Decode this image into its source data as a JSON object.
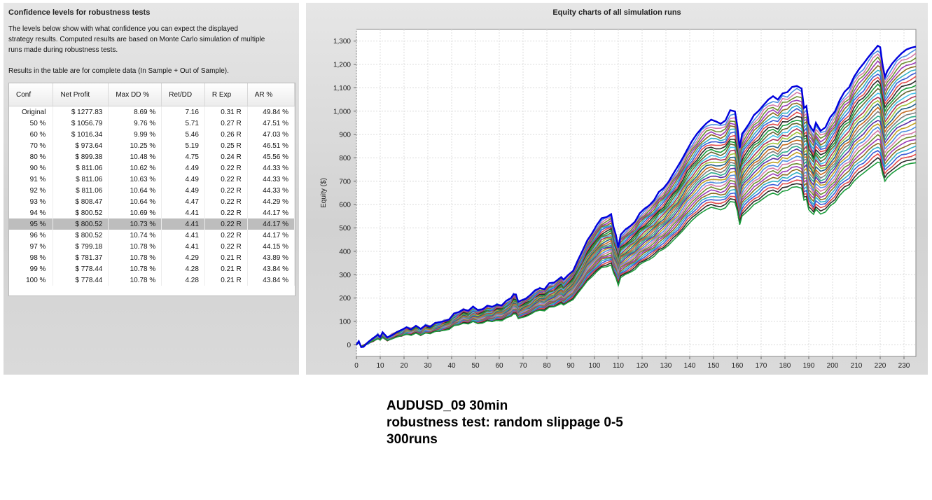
{
  "left_panel": {
    "title": "Confidence levels for robustness tests",
    "description_lines": [
      "The levels below show with what confidence you can expect the displayed",
      "strategy results. Computed results are based on Monte Carlo simulation of multiple",
      "runs made during robustness tests."
    ],
    "note": "Results in the table are for complete data (In Sample + Out of Sample).",
    "table": {
      "columns": [
        "Conf",
        "Net Profit",
        "Max DD %",
        "Ret/DD",
        "R Exp",
        "AR %"
      ],
      "selected_row": 10,
      "rows": [
        [
          "Original",
          "$ 1277.83",
          "8.69 %",
          "7.16",
          "0.31 R",
          "49.84 %"
        ],
        [
          "50 %",
          "$ 1056.79",
          "9.76 %",
          "5.71",
          "0.27 R",
          "47.51 %"
        ],
        [
          "60 %",
          "$ 1016.34",
          "9.99 %",
          "5.46",
          "0.26 R",
          "47.03 %"
        ],
        [
          "70 %",
          "$ 973.64",
          "10.25 %",
          "5.19",
          "0.25 R",
          "46.51 %"
        ],
        [
          "80 %",
          "$ 899.38",
          "10.48 %",
          "4.75",
          "0.24 R",
          "45.56 %"
        ],
        [
          "90 %",
          "$ 811.06",
          "10.62 %",
          "4.49",
          "0.22 R",
          "44.33 %"
        ],
        [
          "91 %",
          "$ 811.06",
          "10.63 %",
          "4.49",
          "0.22 R",
          "44.33 %"
        ],
        [
          "92 %",
          "$ 811.06",
          "10.64 %",
          "4.49",
          "0.22 R",
          "44.33 %"
        ],
        [
          "93 %",
          "$ 808.47",
          "10.64 %",
          "4.47",
          "0.22 R",
          "44.29 %"
        ],
        [
          "94 %",
          "$ 800.52",
          "10.69 %",
          "4.41",
          "0.22 R",
          "44.17 %"
        ],
        [
          "95 %",
          "$ 800.52",
          "10.73 %",
          "4.41",
          "0.22 R",
          "44.17 %"
        ],
        [
          "96 %",
          "$ 800.52",
          "10.74 %",
          "4.41",
          "0.22 R",
          "44.17 %"
        ],
        [
          "97 %",
          "$ 799.18",
          "10.78 %",
          "4.41",
          "0.22 R",
          "44.15 %"
        ],
        [
          "98 %",
          "$ 781.37",
          "10.78 %",
          "4.29",
          "0.21 R",
          "43.89 %"
        ],
        [
          "99 %",
          "$ 778.44",
          "10.78 %",
          "4.28",
          "0.21 R",
          "43.84 %"
        ],
        [
          "100 %",
          "$ 778.44",
          "10.78 %",
          "4.28",
          "0.21 R",
          "43.84 %"
        ]
      ]
    }
  },
  "right_panel": {
    "chart_data": {
      "type": "line",
      "title": "Equity charts of all simulation runs",
      "xlabel": "",
      "ylabel": "Equity ($)",
      "xlim": [
        0,
        235
      ],
      "ylim": [
        -50,
        1350
      ],
      "x_ticks": [
        0,
        10,
        20,
        30,
        40,
        50,
        60,
        70,
        80,
        90,
        100,
        110,
        120,
        130,
        140,
        150,
        160,
        170,
        180,
        190,
        200,
        210,
        220,
        230
      ],
      "y_ticks": [
        0,
        100,
        200,
        300,
        400,
        500,
        600,
        700,
        800,
        900,
        1000,
        1100,
        1200,
        1300
      ],
      "y_tick_labels": [
        "0",
        "100",
        "200",
        "300",
        "400",
        "500",
        "600",
        "700",
        "800",
        "900",
        "1,000",
        "1,100",
        "1,200",
        "1,300"
      ],
      "grid": true,
      "series_count_drawn": 30,
      "highlight_color": "#0000dd",
      "series_colors": [
        "#1a9b3a",
        "#2b2b2b",
        "#e24a4a",
        "#3b5bd6",
        "#31b0c4",
        "#8a6e1f",
        "#9b3bb5",
        "#6c8f2f",
        "#d47aa8",
        "#4e8fe0",
        "#c0a021",
        "#5a2ea6",
        "#2eab8a",
        "#7d7d7d",
        "#c46a1f",
        "#1f5f8a",
        "#9fc23a",
        "#aa3355",
        "#44c0e8",
        "#666633"
      ],
      "top_path": {
        "x": [
          0,
          1,
          2,
          3,
          5,
          7,
          9,
          10,
          11,
          13,
          15,
          17,
          19,
          21,
          23,
          25,
          27,
          29,
          31,
          33,
          35,
          37,
          39,
          41,
          43,
          45,
          47,
          49,
          51,
          53,
          55,
          57,
          59,
          61,
          63,
          65,
          66,
          67,
          68,
          69,
          71,
          73,
          75,
          77,
          79,
          81,
          83,
          85,
          86,
          87,
          89,
          91,
          93,
          95,
          97,
          99,
          101,
          103,
          105,
          107,
          108,
          109,
          110,
          111,
          113,
          115,
          117,
          119,
          121,
          123,
          125,
          127,
          129,
          131,
          133,
          135,
          137,
          139,
          141,
          143,
          145,
          147,
          149,
          151,
          153,
          155,
          157,
          159,
          160,
          161,
          162,
          163,
          165,
          167,
          169,
          171,
          173,
          175,
          177,
          179,
          181,
          183,
          185,
          187,
          188,
          189,
          190,
          191,
          192,
          193,
          195,
          197,
          199,
          201,
          203,
          205,
          207,
          209,
          211,
          213,
          215,
          217,
          219,
          220,
          221,
          222,
          223,
          225,
          227,
          229,
          231,
          233,
          235
        ],
        "y": [
          0,
          15,
          -10,
          -5,
          10,
          25,
          45,
          35,
          50,
          30,
          45,
          55,
          60,
          75,
          70,
          80,
          65,
          85,
          80,
          90,
          95,
          105,
          110,
          130,
          140,
          155,
          145,
          160,
          150,
          155,
          165,
          160,
          175,
          170,
          185,
          200,
          220,
          215,
          180,
          190,
          200,
          210,
          230,
          245,
          240,
          260,
          265,
          285,
          290,
          275,
          300,
          320,
          360,
          400,
          450,
          480,
          510,
          540,
          550,
          560,
          500,
          470,
          420,
          470,
          490,
          510,
          530,
          560,
          580,
          600,
          620,
          650,
          670,
          700,
          730,
          760,
          800,
          840,
          870,
          900,
          930,
          950,
          960,
          955,
          950,
          960,
          1000,
          1000,
          940,
          840,
          900,
          920,
          950,
          980,
          1000,
          1030,
          1050,
          1060,
          1050,
          1080,
          1080,
          1100,
          1110,
          1100,
          1010,
          1020,
          950,
          930,
          910,
          950,
          920,
          930,
          970,
          1000,
          1050,
          1080,
          1100,
          1150,
          1180,
          1200,
          1230,
          1260,
          1280,
          1270,
          1200,
          1150,
          1170,
          1200,
          1230,
          1250,
          1260,
          1270,
          1280
        ]
      },
      "bottom_scale": 0.62
    }
  },
  "caption": {
    "line1": "AUDUSD_09 30min",
    "line2": "robustness test: random slippage 0-5",
    "line3": "300runs"
  }
}
